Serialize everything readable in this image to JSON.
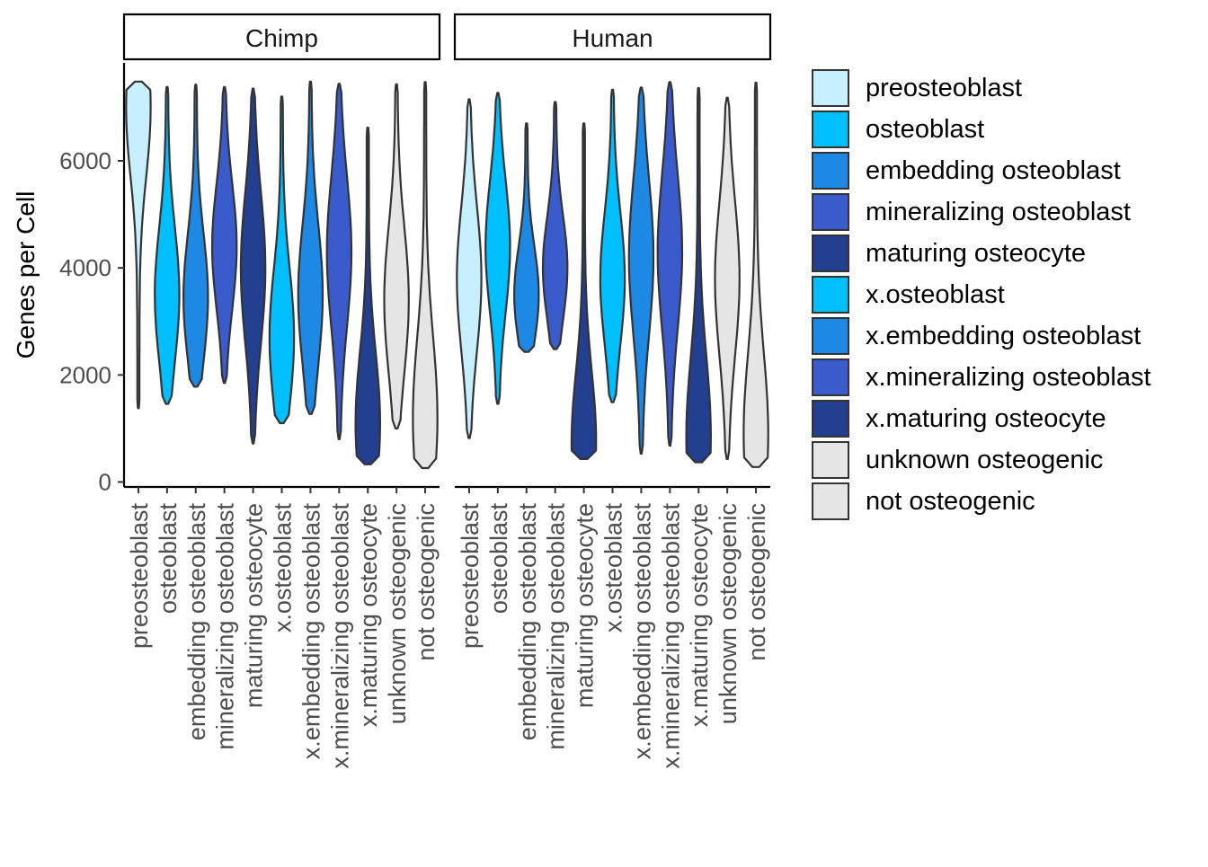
{
  "chart_data": {
    "type": "violin",
    "ylabel": "Genes per Cell",
    "ylim": [
      0,
      7600
    ],
    "yticks": [
      0,
      2000,
      4000,
      6000
    ],
    "grid": false,
    "legend_position": "right",
    "categories": [
      "preosteoblast",
      "osteoblast",
      "embedding osteoblast",
      "mineralizing osteoblast",
      "maturing osteocyte",
      "x.osteoblast",
      "x.embedding osteoblast",
      "x.mineralizing osteoblast",
      "x.maturing osteocyte",
      "unknown osteogenic",
      "not osteogenic"
    ],
    "colors": [
      "#C6EFFF",
      "#00BFFF",
      "#1E88E5",
      "#3A5BCC",
      "#233F8F",
      "#00BFFF",
      "#1E88E5",
      "#3A5BCC",
      "#233F8F",
      "#E5E5E5",
      "#E5E5E5"
    ],
    "panels": [
      {
        "name": "Chimp",
        "violins": [
          {
            "min": 1380,
            "max": 7480,
            "median": 7000
          },
          {
            "min": 1460,
            "max": 7380,
            "median": 3500
          },
          {
            "min": 1780,
            "max": 7420,
            "median": 3450
          },
          {
            "min": 1850,
            "max": 7380,
            "median": 4400
          },
          {
            "min": 720,
            "max": 7350,
            "median": 4000
          },
          {
            "min": 1100,
            "max": 7200,
            "median": 2700
          },
          {
            "min": 1270,
            "max": 7480,
            "median": 3500
          },
          {
            "min": 800,
            "max": 7440,
            "median": 4300
          },
          {
            "min": 330,
            "max": 6620,
            "median": 1100
          },
          {
            "min": 1000,
            "max": 7430,
            "median": 3400
          },
          {
            "min": 260,
            "max": 7470,
            "median": 1200
          }
        ]
      },
      {
        "name": "Human",
        "violins": [
          {
            "min": 820,
            "max": 7150,
            "median": 3800
          },
          {
            "min": 1460,
            "max": 7270,
            "median": 4400
          },
          {
            "min": 2430,
            "max": 6700,
            "median": 3500
          },
          {
            "min": 2480,
            "max": 7100,
            "median": 4000
          },
          {
            "min": 430,
            "max": 6700,
            "median": 750
          },
          {
            "min": 1490,
            "max": 7330,
            "median": 3800
          },
          {
            "min": 530,
            "max": 7370,
            "median": 4200
          },
          {
            "min": 680,
            "max": 7470,
            "median": 4300
          },
          {
            "min": 370,
            "max": 7360,
            "median": 850
          },
          {
            "min": 430,
            "max": 7180,
            "median": 3800
          },
          {
            "min": 280,
            "max": 7460,
            "median": 900
          }
        ]
      }
    ]
  }
}
